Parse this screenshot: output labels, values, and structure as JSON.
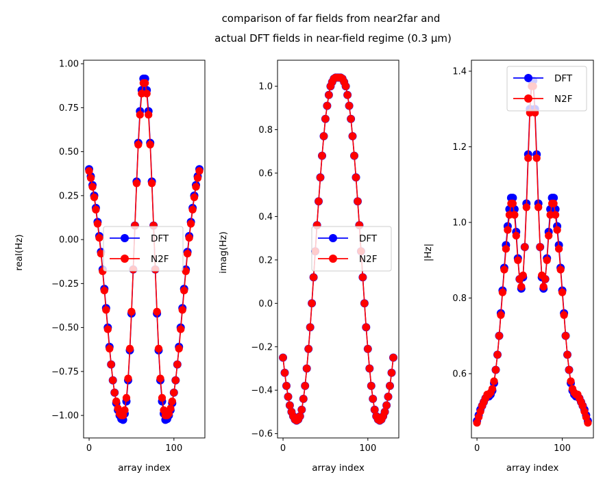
{
  "chart_data": {
    "title_lines": [
      "comparison of far fields from near2far and",
      "actual DFT fields in near-field regime (0.3 µm)"
    ],
    "panels": [
      {
        "type": "line",
        "xlabel": "array index",
        "ylabel": "real(Hz)",
        "xlim": [
          -6.5,
          136.5
        ],
        "ylim": [
          -1.128,
          1.02
        ],
        "xticks": [
          0,
          100
        ],
        "xtick_labels": [
          "0",
          "100"
        ],
        "yticks": [
          1.0,
          0.75,
          0.5,
          0.25,
          0.0,
          -0.25,
          -0.5,
          -0.75,
          -1.0
        ],
        "ytick_labels": [
          "1.00",
          "0.75",
          "0.50",
          "0.25",
          "0.00",
          "−0.25",
          "−0.50",
          "−0.75",
          "−1.00"
        ],
        "legend": "center",
        "series": [
          {
            "name": "DFT",
            "color": "#0000ff",
            "y": [
              0.4,
              0.36,
              0.31,
              0.25,
              0.18,
              0.1,
              0.02,
              -0.07,
              -0.17,
              -0.28,
              -0.39,
              -0.5,
              -0.61,
              -0.71,
              -0.8,
              -0.87,
              -0.93,
              -0.97,
              -1.0,
              -1.02,
              -1.025,
              -0.99,
              -0.92,
              -0.8,
              -0.63,
              -0.42,
              -0.17,
              0.08,
              0.33,
              0.55,
              0.73,
              0.85,
              0.915,
              0.915,
              0.85,
              0.73,
              0.55,
              0.33,
              0.08,
              -0.17,
              -0.42,
              -0.63,
              -0.8,
              -0.92,
              -0.99,
              -1.025,
              -1.02,
              -1.0,
              -0.97,
              -0.93,
              -0.87,
              -0.8,
              -0.71,
              -0.61,
              -0.5,
              -0.39,
              -0.28,
              -0.17,
              -0.07,
              0.02,
              0.1,
              0.18,
              0.25,
              0.31,
              0.36,
              0.4
            ]
          },
          {
            "name": "N2F",
            "color": "#ff0000",
            "y": [
              0.39,
              0.35,
              0.3,
              0.24,
              0.17,
              0.09,
              0.01,
              -0.08,
              -0.18,
              -0.29,
              -0.4,
              -0.51,
              -0.62,
              -0.71,
              -0.8,
              -0.87,
              -0.92,
              -0.96,
              -0.99,
              -1.0,
              -1.0,
              -0.97,
              -0.9,
              -0.79,
              -0.62,
              -0.41,
              -0.17,
              0.08,
              0.32,
              0.54,
              0.71,
              0.83,
              0.89,
              0.89,
              0.83,
              0.71,
              0.54,
              0.32,
              0.08,
              -0.17,
              -0.41,
              -0.62,
              -0.79,
              -0.9,
              -0.97,
              -1.0,
              -1.0,
              -0.99,
              -0.96,
              -0.92,
              -0.87,
              -0.8,
              -0.71,
              -0.62,
              -0.51,
              -0.4,
              -0.29,
              -0.18,
              -0.08,
              0.01,
              0.09,
              0.17,
              0.24,
              0.3,
              0.35,
              0.39
            ]
          }
        ]
      },
      {
        "type": "line",
        "xlabel": "array index",
        "ylabel": "imag(Hz)",
        "xlim": [
          -6.5,
          136.5
        ],
        "ylim": [
          -0.62,
          1.12
        ],
        "xticks": [
          0,
          100
        ],
        "xtick_labels": [
          "0",
          "100"
        ],
        "yticks": [
          1.0,
          0.8,
          0.6,
          0.4,
          0.2,
          0.0,
          -0.2,
          -0.4,
          -0.6
        ],
        "ytick_labels": [
          "1.0",
          "0.8",
          "0.6",
          "0.4",
          "0.2",
          "0.0",
          "−0.2",
          "−0.4",
          "−0.6"
        ],
        "legend": "center-right",
        "series": [
          {
            "name": "DFT",
            "color": "#0000ff",
            "y": [
              -0.25,
              -0.32,
              -0.38,
              -0.43,
              -0.47,
              -0.5,
              -0.52,
              -0.535,
              -0.54,
              -0.535,
              -0.52,
              -0.49,
              -0.44,
              -0.38,
              -0.3,
              -0.21,
              -0.11,
              0.0,
              0.12,
              0.24,
              0.36,
              0.47,
              0.58,
              0.68,
              0.77,
              0.85,
              0.91,
              0.96,
              1.0,
              1.02,
              1.035,
              1.04,
              1.04,
              1.04,
              1.04,
              1.035,
              1.02,
              1.0,
              0.96,
              0.91,
              0.85,
              0.77,
              0.68,
              0.58,
              0.47,
              0.36,
              0.24,
              0.12,
              0.0,
              -0.11,
              -0.21,
              -0.3,
              -0.38,
              -0.44,
              -0.49,
              -0.52,
              -0.535,
              -0.54,
              -0.535,
              -0.52,
              -0.5,
              -0.47,
              -0.43,
              -0.38,
              -0.32,
              -0.25
            ]
          },
          {
            "name": "N2F",
            "color": "#ff0000",
            "y": [
              -0.25,
              -0.32,
              -0.38,
              -0.43,
              -0.47,
              -0.5,
              -0.52,
              -0.535,
              -0.54,
              -0.535,
              -0.52,
              -0.49,
              -0.44,
              -0.38,
              -0.3,
              -0.21,
              -0.11,
              0.0,
              0.12,
              0.24,
              0.36,
              0.47,
              0.58,
              0.68,
              0.77,
              0.85,
              0.91,
              0.96,
              1.0,
              1.02,
              1.035,
              1.04,
              1.04,
              1.04,
              1.04,
              1.035,
              1.02,
              1.0,
              0.96,
              0.91,
              0.85,
              0.77,
              0.68,
              0.58,
              0.47,
              0.36,
              0.24,
              0.12,
              0.0,
              -0.11,
              -0.21,
              -0.3,
              -0.38,
              -0.44,
              -0.49,
              -0.52,
              -0.535,
              -0.54,
              -0.535,
              -0.52,
              -0.5,
              -0.47,
              -0.43,
              -0.38,
              -0.32,
              -0.25
            ]
          }
        ]
      },
      {
        "type": "line",
        "xlabel": "array index",
        "ylabel": "|Hz|",
        "xlim": [
          -6.5,
          136.5
        ],
        "ylim": [
          0.43,
          1.429
        ],
        "xticks": [
          0,
          100
        ],
        "xtick_labels": [
          "0",
          "100"
        ],
        "yticks": [
          1.4,
          1.2,
          1.0,
          0.8,
          0.6
        ],
        "ytick_labels": [
          "1.4",
          "1.2",
          "1.0",
          "0.8",
          "0.6"
        ],
        "legend": "upper-right",
        "series": [
          {
            "name": "DFT",
            "color": "#0000ff",
            "y": [
              0.475,
              0.49,
              0.505,
              0.515,
              0.525,
              0.535,
              0.54,
              0.54,
              0.545,
              0.555,
              0.575,
              0.61,
              0.65,
              0.7,
              0.76,
              0.82,
              0.88,
              0.94,
              0.99,
              1.035,
              1.065,
              1.065,
              1.035,
              0.975,
              0.905,
              0.85,
              0.825,
              0.855,
              0.935,
              1.05,
              1.18,
              1.3,
              1.375,
              1.375,
              1.3,
              1.18,
              1.05,
              0.935,
              0.855,
              0.825,
              0.85,
              0.905,
              0.975,
              1.035,
              1.065,
              1.065,
              1.035,
              0.99,
              0.94,
              0.88,
              0.82,
              0.76,
              0.7,
              0.65,
              0.61,
              0.575,
              0.555,
              0.545,
              0.54,
              0.54,
              0.535,
              0.525,
              0.515,
              0.505,
              0.49,
              0.475
            ]
          },
          {
            "name": "N2F",
            "color": "#ff0000",
            "y": [
              0.47,
              0.485,
              0.5,
              0.515,
              0.525,
              0.535,
              0.545,
              0.545,
              0.55,
              0.56,
              0.58,
              0.61,
              0.65,
              0.7,
              0.755,
              0.815,
              0.875,
              0.93,
              0.98,
              1.02,
              1.05,
              1.05,
              1.02,
              0.965,
              0.9,
              0.85,
              0.83,
              0.86,
              0.935,
              1.04,
              1.17,
              1.29,
              1.36,
              1.36,
              1.29,
              1.17,
              1.04,
              0.935,
              0.86,
              0.83,
              0.85,
              0.9,
              0.965,
              1.02,
              1.05,
              1.05,
              1.02,
              0.98,
              0.93,
              0.875,
              0.815,
              0.755,
              0.7,
              0.65,
              0.61,
              0.58,
              0.56,
              0.55,
              0.545,
              0.545,
              0.535,
              0.525,
              0.515,
              0.5,
              0.485,
              0.47
            ]
          }
        ]
      }
    ],
    "x": [
      0,
      2,
      4,
      6,
      8,
      10,
      12,
      14,
      16,
      18,
      20,
      22,
      24,
      26,
      28,
      30,
      32,
      34,
      36,
      38,
      40,
      42,
      44,
      46,
      48,
      50,
      52,
      54,
      56,
      58,
      60,
      62,
      64,
      66,
      68,
      70,
      72,
      74,
      76,
      78,
      80,
      82,
      84,
      86,
      88,
      90,
      92,
      94,
      96,
      98,
      100,
      102,
      104,
      106,
      108,
      110,
      112,
      114,
      116,
      118,
      120,
      122,
      124,
      126,
      128,
      130
    ]
  }
}
